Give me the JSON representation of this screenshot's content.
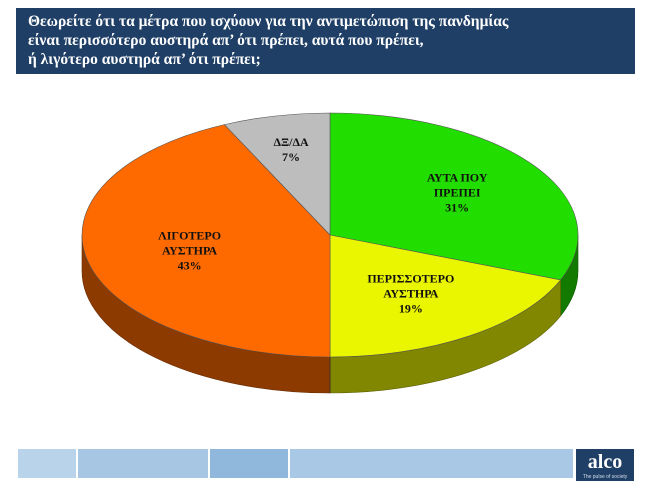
{
  "header": {
    "title_lines": [
      "Θεωρείτε ότι τα μέτρα που ισχύουν για την αντιμετώπιση της πανδημίας",
      "είναι περισσότερο αυστηρά απ’ ότι πρέπει, αυτά που πρέπει,",
      "ή λιγότερο αυστηρά απ’ ότι πρέπει;"
    ]
  },
  "chart_data": {
    "type": "pie",
    "three_d": true,
    "slices": [
      {
        "label_lines": [
          "ΑΥΤΑ ΠΟΥ",
          "ΠΡΕΠΕΙ"
        ],
        "value": 31,
        "value_label": "31%",
        "color": "#22dd00"
      },
      {
        "label_lines": [
          "ΠΕΡΙΣΣΟΤΕΡΟ",
          "ΑΥΣΤΗΡΑ"
        ],
        "value": 19,
        "value_label": "19%",
        "color": "#eaf500"
      },
      {
        "label_lines": [
          "ΛΙΓΟΤΕΡΟ",
          "ΑΥΣΤΗΡΑ"
        ],
        "value": 43,
        "value_label": "43%",
        "color": "#ff6a00"
      },
      {
        "label_lines": [
          "ΔΞ/ΔΑ"
        ],
        "value": 7,
        "value_label": "7%",
        "color": "#bdbdbd"
      }
    ]
  },
  "footer": {
    "logo": "alco",
    "tagline": "The pulse of society",
    "bar_colors": [
      "#b9d3ea",
      "#a6c6e3",
      "#90b8dc",
      "#a9c8e5"
    ]
  }
}
